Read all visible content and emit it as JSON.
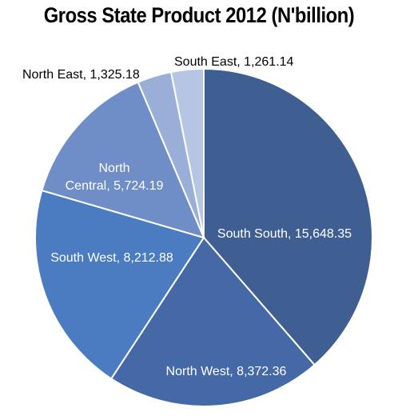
{
  "chart_data": {
    "type": "pie",
    "title": "Gross State Product 2012 (N'billion)",
    "slices": [
      {
        "label": "South South",
        "value": 15648.35,
        "value_text": "15,648.35",
        "color": "#3f5f93"
      },
      {
        "label": "North West",
        "value": 8372.36,
        "value_text": "8,372.36",
        "color": "#4469a6"
      },
      {
        "label": "South West",
        "value": 8212.88,
        "value_text": "8,212.88",
        "color": "#4b7bc0"
      },
      {
        "label": "North Central",
        "value": 5724.19,
        "value_text": "5,724.19",
        "color": "#6f8dc6"
      },
      {
        "label": "North East",
        "value": 1325.18,
        "value_text": "1,325.18",
        "color": "#9aafd7"
      },
      {
        "label": "South East",
        "value": 1261.14,
        "value_text": "1,261.14",
        "color": "#b6c5e3"
      }
    ]
  }
}
